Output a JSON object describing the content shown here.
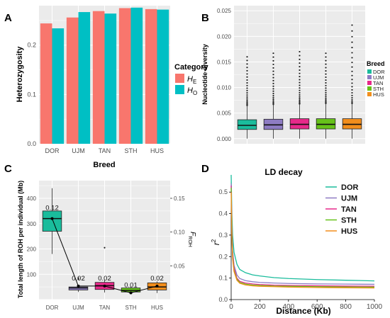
{
  "colors": {
    "he": "#F8766D",
    "ho": "#00BFC4",
    "DOR": "#1ABC9C",
    "UJM": "#8E7CC3",
    "TAN": "#E7298A",
    "STH": "#66C21A",
    "HUS": "#F28E1C",
    "panel_bg": "#EBEBEB",
    "grid": "#FFFFFF",
    "axis_text": "#4D4D4D"
  },
  "chart_data": [
    {
      "panel": "A",
      "type": "bar",
      "title": "",
      "xlabel": "Breed",
      "ylabel": "Heterozygosity",
      "categories": [
        "DOR",
        "UJM",
        "TAN",
        "STH",
        "HUS"
      ],
      "ylim": [
        0,
        0.28
      ],
      "yticks": [
        "0.0",
        "0.1",
        "0.2"
      ],
      "legend": {
        "title": "Category",
        "position": "right",
        "labels": [
          "H",
          "H"
        ],
        "subscripts": [
          "E",
          "O"
        ]
      },
      "series": [
        {
          "name": "HE",
          "values": [
            0.244,
            0.256,
            0.269,
            0.275,
            0.273
          ]
        },
        {
          "name": "HO",
          "values": [
            0.234,
            0.267,
            0.264,
            0.276,
            0.272
          ]
        }
      ],
      "grid": true
    },
    {
      "panel": "B",
      "type": "boxplot",
      "xlabel": "",
      "ylabel": "Nucleotide diversity",
      "categories": [
        "DOR",
        "UJM",
        "TAN",
        "STH",
        "HUS"
      ],
      "ylim": [
        -0.001,
        0.026
      ],
      "yticks": [
        "0.000",
        "0.005",
        "0.010",
        "0.015",
        "0.020",
        "0.025"
      ],
      "legend": {
        "title": "Breed",
        "position": "right",
        "labels": [
          "DOR",
          "UJM",
          "TAN",
          "STH",
          "HUS"
        ]
      },
      "boxes": [
        {
          "q1": 0.0018,
          "median": 0.0026,
          "q3": 0.0037,
          "whisker_low": 0.0,
          "whisker_high": 0.0065,
          "outlier_max": 0.016
        },
        {
          "q1": 0.0018,
          "median": 0.0027,
          "q3": 0.0038,
          "whisker_low": 0.0,
          "whisker_high": 0.0067,
          "outlier_max": 0.0167
        },
        {
          "q1": 0.0019,
          "median": 0.0028,
          "q3": 0.0039,
          "whisker_low": 0.0,
          "whisker_high": 0.0068,
          "outlier_max": 0.017
        },
        {
          "q1": 0.0019,
          "median": 0.0028,
          "q3": 0.0039,
          "whisker_low": 0.0,
          "whisker_high": 0.0069,
          "outlier_max": 0.0167
        },
        {
          "q1": 0.0019,
          "median": 0.0028,
          "q3": 0.0039,
          "whisker_low": 0.0,
          "whisker_high": 0.0069,
          "outlier_max": 0.0222
        }
      ],
      "grid": true
    },
    {
      "panel": "C",
      "type": "boxplot",
      "xlabel": "",
      "ylabel": "Total length of ROH per individual (Mb)",
      "y2label": "F",
      "y2label_sub": "ROH",
      "categories": [
        "DOR",
        "UJM",
        "TAN",
        "STH",
        "HUS"
      ],
      "ylim": [
        0,
        470
      ],
      "yticks": [
        0,
        100,
        200,
        300,
        400
      ],
      "y2lim": [
        0,
        0.1762
      ],
      "y2ticks": [
        "0.05",
        "0.10",
        "0.15"
      ],
      "boxes": [
        {
          "q1": 270,
          "median": 320,
          "q3": 350,
          "whisker_low": 180,
          "whisker_high": 440,
          "outliers": []
        },
        {
          "q1": 38,
          "median": 46,
          "q3": 50,
          "whisker_low": 30,
          "whisker_high": 58,
          "outliers": [
            85,
            80
          ]
        },
        {
          "q1": 40,
          "median": 55,
          "q3": 68,
          "whisker_low": 28,
          "whisker_high": 78,
          "outliers": [
            205
          ]
        },
        {
          "q1": 30,
          "median": 36,
          "q3": 46,
          "whisker_low": 22,
          "whisker_high": 52,
          "outliers": []
        },
        {
          "q1": 38,
          "median": 50,
          "q3": 66,
          "whisker_low": 26,
          "whisker_high": 72,
          "outliers": []
        }
      ],
      "froh": [
        0.12,
        0.02,
        0.02,
        0.01,
        0.02
      ],
      "froh_labels": [
        "0.12",
        "0.02",
        "0.02",
        "0.01",
        "0.02"
      ],
      "grid": true
    },
    {
      "panel": "D",
      "type": "line",
      "title": "LD decay",
      "xlabel": "Distance (Kb)",
      "ylabel": "r",
      "ylabel_sup": "2",
      "xlim": [
        0,
        1000
      ],
      "ylim": [
        0,
        0.56
      ],
      "xticks": [
        0,
        200,
        400,
        600,
        800,
        1000
      ],
      "yticks": [
        "0.0",
        "0.1",
        "0.2",
        "0.3",
        "0.4",
        "0.5"
      ],
      "legend": {
        "position": "top-right",
        "labels": [
          "DOR",
          "UJM",
          "TAN",
          "STH",
          "HUS"
        ]
      },
      "series": [
        {
          "name": "DOR",
          "x": [
            0,
            5,
            10,
            20,
            40,
            60,
            100,
            150,
            200,
            300,
            400,
            600,
            800,
            1000
          ],
          "y": [
            0.58,
            0.4,
            0.3,
            0.22,
            0.165,
            0.14,
            0.125,
            0.115,
            0.11,
            0.102,
            0.098,
            0.093,
            0.09,
            0.087
          ]
        },
        {
          "name": "UJM",
          "x": [
            0,
            5,
            10,
            20,
            40,
            60,
            100,
            150,
            200,
            300,
            400,
            600,
            800,
            1000
          ],
          "y": [
            0.54,
            0.33,
            0.23,
            0.16,
            0.115,
            0.098,
            0.088,
            0.083,
            0.08,
            0.077,
            0.075,
            0.073,
            0.072,
            0.071
          ]
        },
        {
          "name": "TAN",
          "x": [
            0,
            5,
            10,
            20,
            40,
            60,
            100,
            150,
            200,
            300,
            400,
            600,
            800,
            1000
          ],
          "y": [
            0.53,
            0.31,
            0.21,
            0.145,
            0.1,
            0.085,
            0.077,
            0.073,
            0.07,
            0.067,
            0.066,
            0.064,
            0.063,
            0.062
          ]
        },
        {
          "name": "STH",
          "x": [
            0,
            5,
            10,
            20,
            40,
            60,
            100,
            150,
            200,
            300,
            400,
            600,
            800,
            1000
          ],
          "y": [
            0.52,
            0.3,
            0.2,
            0.135,
            0.095,
            0.08,
            0.072,
            0.068,
            0.066,
            0.063,
            0.062,
            0.06,
            0.059,
            0.058
          ]
        },
        {
          "name": "HUS",
          "x": [
            0,
            5,
            10,
            20,
            40,
            60,
            100,
            150,
            200,
            300,
            400,
            600,
            800,
            1000
          ],
          "y": [
            0.5,
            0.29,
            0.19,
            0.13,
            0.09,
            0.076,
            0.068,
            0.064,
            0.062,
            0.06,
            0.058,
            0.056,
            0.055,
            0.054
          ]
        }
      ],
      "grid": false
    }
  ],
  "panel_letters": [
    "A",
    "B",
    "C",
    "D"
  ]
}
